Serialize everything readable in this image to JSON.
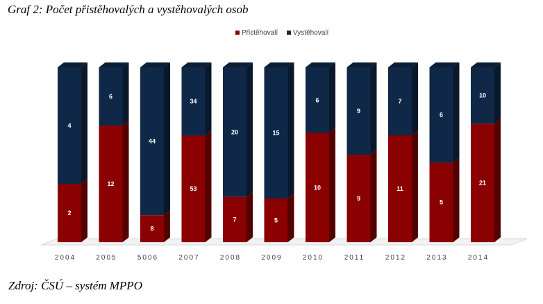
{
  "header": {
    "title": "Graf 2: Počet přistěhovalých a vystěhovalých osob"
  },
  "footer": {
    "source": "Zdroj: ČSÚ – systém MPPO"
  },
  "chart_data": {
    "type": "bar",
    "stacked": "percent",
    "categories": [
      "2004",
      "2005",
      "5006",
      "2007",
      "2008",
      "2009",
      "2010",
      "2011",
      "2012",
      "2013",
      "2014"
    ],
    "series": [
      {
        "name": "Přistěhovalí",
        "values": [
          2,
          12,
          8,
          53,
          7,
          5,
          10,
          9,
          11,
          5,
          21
        ],
        "color": "#8b0000"
      },
      {
        "name": "Vystěhovalí",
        "values": [
          4,
          6,
          44,
          34,
          20,
          15,
          6,
          9,
          7,
          6,
          10
        ],
        "color": "#0f2847"
      }
    ],
    "legend": "top-center",
    "grid": false
  }
}
